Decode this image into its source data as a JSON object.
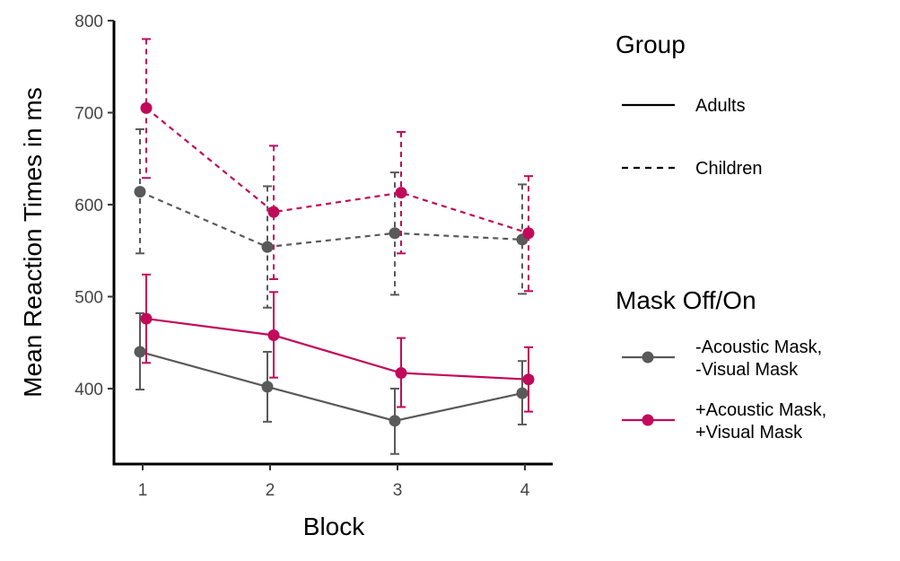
{
  "chart_data": {
    "type": "line",
    "xlabel": "Block",
    "ylabel": "Mean Reaction Times in ms",
    "categories": [
      "1",
      "2",
      "3",
      "4"
    ],
    "y_ticks": [
      "400",
      "500",
      "600",
      "700",
      "800"
    ],
    "ylim": [
      318,
      800
    ],
    "error_bars": true,
    "grid": false,
    "legend_position": "right",
    "legends": {
      "linetype": {
        "title": "Group",
        "entries": [
          {
            "label": "Adults",
            "style": "solid"
          },
          {
            "label": "Children",
            "style": "dashed"
          }
        ]
      },
      "color": {
        "title": "Mask Off/On",
        "entries": [
          {
            "label_lines": [
              "-Acoustic Mask,",
              "-Visual Mask"
            ],
            "color": "#595959"
          },
          {
            "label_lines": [
              "+Acoustic Mask,",
              " +Visual Mask"
            ],
            "color": "#C2095A"
          }
        ]
      }
    },
    "series": [
      {
        "group": "Adults",
        "mask": "off",
        "color": "#595959",
        "style": "solid",
        "values": [
          440,
          402,
          365,
          395
        ],
        "lower": [
          399,
          364,
          329,
          361
        ],
        "upper": [
          482,
          440,
          400,
          430
        ]
      },
      {
        "group": "Adults",
        "mask": "on",
        "color": "#C2095A",
        "style": "solid",
        "values": [
          476,
          458,
          417,
          410
        ],
        "lower": [
          428,
          412,
          380,
          375
        ],
        "upper": [
          524,
          505,
          455,
          445
        ]
      },
      {
        "group": "Children",
        "mask": "off",
        "color": "#595959",
        "style": "dashed",
        "values": [
          614,
          554,
          569,
          562
        ],
        "lower": [
          547,
          488,
          502,
          503
        ],
        "upper": [
          682,
          620,
          635,
          622
        ]
      },
      {
        "group": "Children",
        "mask": "on",
        "color": "#C2095A",
        "style": "dashed",
        "values": [
          705,
          592,
          613,
          569
        ],
        "lower": [
          629,
          519,
          547,
          506
        ],
        "upper": [
          780,
          664,
          679,
          631
        ]
      }
    ]
  }
}
